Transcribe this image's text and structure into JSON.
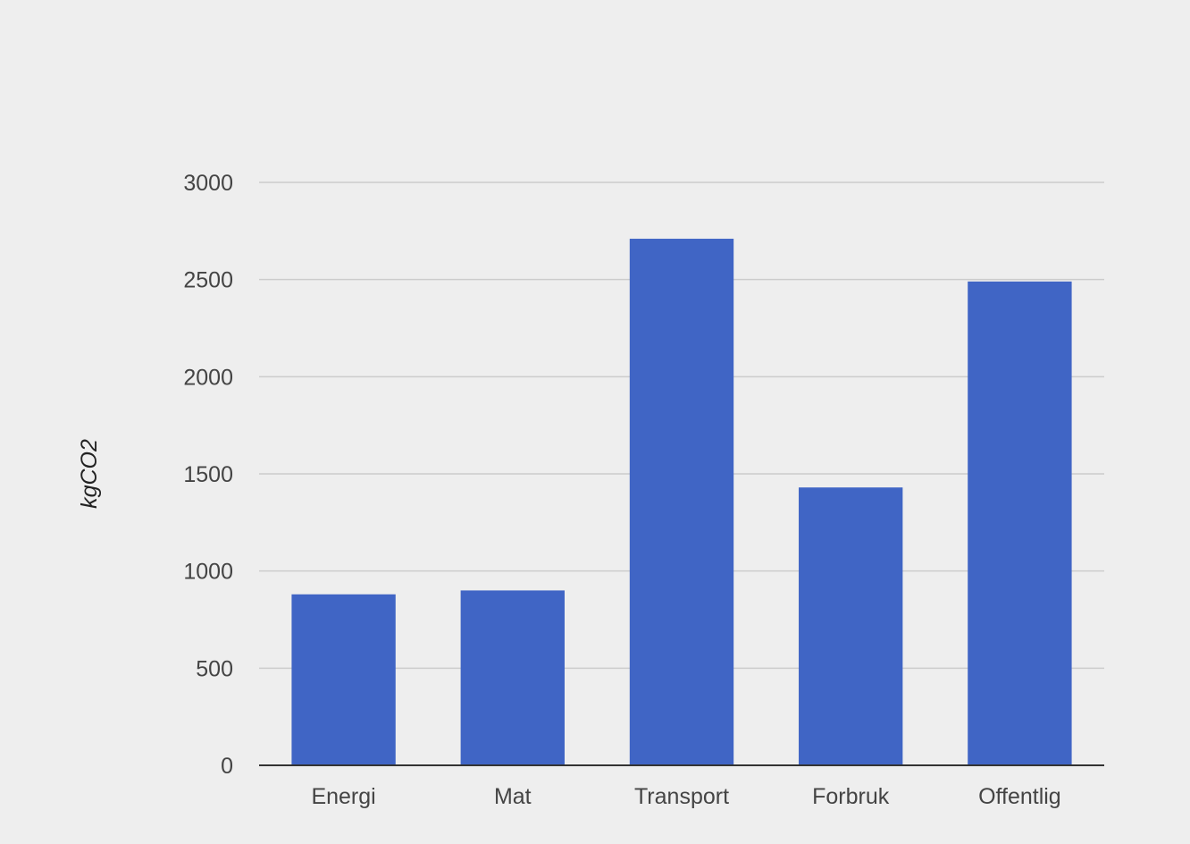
{
  "chart_data": {
    "type": "bar",
    "title": "",
    "xlabel": "",
    "ylabel": "kgCO2",
    "categories": [
      "Energi",
      "Mat",
      "Transport",
      "Forbruk",
      "Offentlig"
    ],
    "values": [
      880,
      900,
      2710,
      1430,
      2490
    ],
    "ylim": [
      0,
      3000
    ],
    "yticks": [
      0,
      500,
      1000,
      1500,
      2000,
      2500,
      3000
    ],
    "grid": true,
    "legend": "none",
    "bar_color": "#4065c5"
  },
  "colors": {
    "background": "#eeeeee",
    "bar": "#4065c5"
  }
}
